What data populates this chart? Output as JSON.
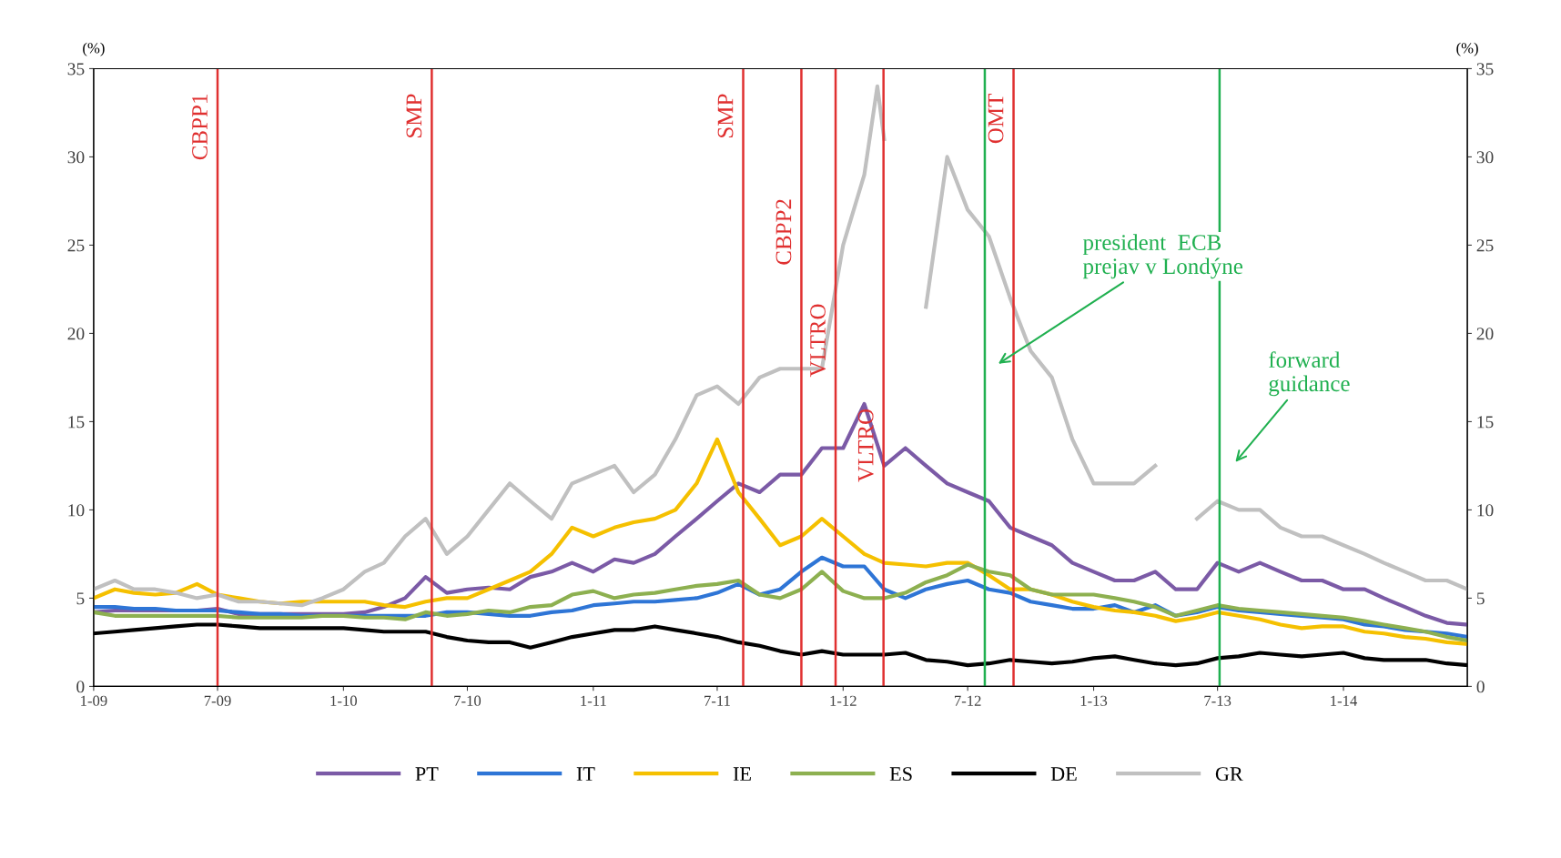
{
  "chart_data": {
    "type": "line",
    "ylabel": "(%)",
    "y2label": "(%)",
    "x": [
      "2009-01",
      "2009-02",
      "2009-03",
      "2009-04",
      "2009-05",
      "2009-06",
      "2009-07",
      "2009-08",
      "2009-09",
      "2009-10",
      "2009-11",
      "2009-12",
      "2010-01",
      "2010-02",
      "2010-03",
      "2010-04",
      "2010-05",
      "2010-06",
      "2010-07",
      "2010-08",
      "2010-09",
      "2010-10",
      "2010-11",
      "2010-12",
      "2011-01",
      "2011-02",
      "2011-03",
      "2011-04",
      "2011-05",
      "2011-06",
      "2011-07",
      "2011-08",
      "2011-09",
      "2011-10",
      "2011-11",
      "2011-12",
      "2012-01",
      "2012-02",
      "2012-03",
      "2012-04",
      "2012-05",
      "2012-06",
      "2012-07",
      "2012-08",
      "2012-09",
      "2012-10",
      "2012-11",
      "2012-12",
      "2013-01",
      "2013-02",
      "2013-03",
      "2013-04",
      "2013-05",
      "2013-06",
      "2013-07",
      "2013-08",
      "2013-09",
      "2013-10",
      "2013-11",
      "2013-12",
      "2014-01",
      "2014-02",
      "2014-03",
      "2014-04",
      "2014-05",
      "2014-06",
      "2014-07"
    ],
    "series": [
      {
        "name": "PT",
        "color": "#7b5aa6",
        "values": [
          4.2,
          4.3,
          4.3,
          4.3,
          4.3,
          4.3,
          4.4,
          4.1,
          4.1,
          4.1,
          4.1,
          4.1,
          4.1,
          4.2,
          4.5,
          5.0,
          6.2,
          5.3,
          5.5,
          5.6,
          5.5,
          6.2,
          6.5,
          7.0,
          6.5,
          7.2,
          7.0,
          7.5,
          8.5,
          9.5,
          10.5,
          11.5,
          11.0,
          12.0,
          12.0,
          13.5,
          13.5,
          16.0,
          12.5,
          13.5,
          12.5,
          11.5,
          11.0,
          10.5,
          9.0,
          8.5,
          8.0,
          7.0,
          6.5,
          6.0,
          6.0,
          6.5,
          5.5,
          5.5,
          7.0,
          6.5,
          7.0,
          6.5,
          6.0,
          6.0,
          5.5,
          5.5,
          5.0,
          4.5,
          4.0,
          3.6,
          3.5
        ]
      },
      {
        "name": "IT",
        "color": "#2e75d6",
        "values": [
          4.5,
          4.5,
          4.4,
          4.4,
          4.3,
          4.3,
          4.3,
          4.2,
          4.1,
          4.1,
          4.0,
          4.0,
          4.0,
          4.0,
          4.0,
          4.0,
          4.0,
          4.2,
          4.2,
          4.1,
          4.0,
          4.0,
          4.2,
          4.3,
          4.6,
          4.7,
          4.8,
          4.8,
          4.9,
          5.0,
          5.3,
          5.8,
          5.2,
          5.5,
          6.5,
          7.3,
          6.8,
          6.8,
          5.5,
          5.0,
          5.5,
          5.8,
          6.0,
          5.5,
          5.3,
          4.8,
          4.6,
          4.4,
          4.4,
          4.6,
          4.2,
          4.6,
          4.0,
          4.2,
          4.5,
          4.3,
          4.2,
          4.1,
          4.0,
          3.9,
          3.8,
          3.5,
          3.4,
          3.2,
          3.1,
          3.0,
          2.8
        ]
      },
      {
        "name": "IE",
        "color": "#f5c000",
        "values": [
          5.0,
          5.5,
          5.3,
          5.2,
          5.3,
          5.8,
          5.2,
          5.0,
          4.8,
          4.7,
          4.8,
          4.8,
          4.8,
          4.8,
          4.6,
          4.5,
          4.8,
          5.0,
          5.0,
          5.5,
          6.0,
          6.5,
          7.5,
          9.0,
          8.5,
          9.0,
          9.3,
          9.5,
          10.0,
          11.5,
          14.0,
          11.0,
          9.5,
          8.0,
          8.5,
          9.5,
          8.5,
          7.5,
          7.0,
          6.9,
          6.8,
          7.0,
          7.0,
          6.3,
          5.5,
          5.5,
          5.2,
          4.8,
          4.5,
          4.3,
          4.2,
          4.0,
          3.7,
          3.9,
          4.2,
          4.0,
          3.8,
          3.5,
          3.3,
          3.4,
          3.4,
          3.1,
          3.0,
          2.8,
          2.7,
          2.5,
          2.4
        ]
      },
      {
        "name": "ES",
        "color": "#8db050",
        "values": [
          4.2,
          4.0,
          4.0,
          4.0,
          4.0,
          4.0,
          4.0,
          3.9,
          3.9,
          3.9,
          3.9,
          4.0,
          4.0,
          3.9,
          3.9,
          3.8,
          4.2,
          4.0,
          4.1,
          4.3,
          4.2,
          4.5,
          4.6,
          5.2,
          5.4,
          5.0,
          5.2,
          5.3,
          5.5,
          5.7,
          5.8,
          6.0,
          5.2,
          5.0,
          5.5,
          6.5,
          5.4,
          5.0,
          5.0,
          5.3,
          5.9,
          6.3,
          6.9,
          6.5,
          6.3,
          5.5,
          5.2,
          5.2,
          5.2,
          5.0,
          4.8,
          4.5,
          4.0,
          4.3,
          4.6,
          4.4,
          4.3,
          4.2,
          4.1,
          4.0,
          3.9,
          3.7,
          3.5,
          3.3,
          3.1,
          2.8,
          2.6
        ]
      },
      {
        "name": "DE",
        "color": "#000000",
        "values": [
          3.0,
          3.1,
          3.2,
          3.3,
          3.4,
          3.5,
          3.5,
          3.4,
          3.3,
          3.3,
          3.3,
          3.3,
          3.3,
          3.2,
          3.1,
          3.1,
          3.1,
          2.8,
          2.6,
          2.5,
          2.5,
          2.2,
          2.5,
          2.8,
          3.0,
          3.2,
          3.2,
          3.4,
          3.2,
          3.0,
          2.8,
          2.5,
          2.3,
          2.0,
          1.8,
          2.0,
          1.8,
          1.8,
          1.8,
          1.9,
          1.5,
          1.4,
          1.2,
          1.3,
          1.5,
          1.4,
          1.3,
          1.4,
          1.6,
          1.7,
          1.5,
          1.3,
          1.2,
          1.3,
          1.6,
          1.7,
          1.9,
          1.8,
          1.7,
          1.8,
          1.9,
          1.6,
          1.5,
          1.5,
          1.5,
          1.3,
          1.2
        ]
      },
      {
        "name": "GR",
        "color": "#c0c0c0",
        "x": [
          "2009-01",
          "2009-02",
          "2009-03",
          "2009-04",
          "2009-05",
          "2009-06",
          "2009-07",
          "2009-08",
          "2009-09",
          "2009-10",
          "2009-11",
          "2009-12",
          "2010-01",
          "2010-02",
          "2010-03",
          "2010-04",
          "2010-05",
          "2010-06",
          "2010-07",
          "2010-08",
          "2010-09",
          "2010-10",
          "2010-11",
          "2010-12",
          "2011-01",
          "2011-02",
          "2011-03",
          "2011-04",
          "2011-05",
          "2011-06",
          "2011-07",
          "2011-08",
          "2011-09",
          "2011-10",
          "2011-11",
          "2011-12",
          "2012-01",
          "2012-02",
          "2012-02-20",
          "2012-03",
          "2012-04",
          "2012-05",
          "2012-06",
          "2012-07",
          "2012-08",
          "2012-09",
          "2012-10",
          "2012-11",
          "2012-12",
          "2013-01",
          "2013-02",
          "2013-03",
          "2013-04",
          "2013-05",
          "2013-06",
          "2013-07",
          "2013-08",
          "2013-09",
          "2013-10",
          "2013-11",
          "2013-12",
          "2014-01",
          "2014-02",
          "2014-03",
          "2014-04",
          "2014-05",
          "2014-06",
          "2014-07"
        ],
        "values": [
          5.5,
          6.0,
          5.5,
          5.5,
          5.3,
          5.0,
          5.2,
          4.8,
          4.8,
          4.7,
          4.6,
          5.0,
          5.5,
          6.5,
          7.0,
          8.5,
          9.5,
          7.5,
          8.5,
          10.0,
          11.5,
          10.5,
          9.5,
          11.5,
          12.0,
          12.5,
          11.0,
          12.0,
          14.0,
          16.5,
          17.0,
          16.0,
          17.5,
          18.0,
          18.0,
          18.0,
          25.0,
          29.0,
          34.0,
          31.0,
          null,
          21.5,
          30.0,
          27.0,
          25.5,
          22.0,
          19.0,
          17.5,
          14.0,
          11.5,
          11.5,
          11.5,
          12.5,
          null,
          9.5,
          10.5,
          10.0,
          10.0,
          9.0,
          8.5,
          8.5,
          8.0,
          7.5,
          7.0,
          6.5,
          6.0,
          6.0,
          5.5
        ]
      }
    ],
    "xlim": [
      "2009-01",
      "2014-07"
    ],
    "xticks": [
      {
        "value": "2009-01",
        "label": "1-09"
      },
      {
        "value": "2009-07",
        "label": "7-09"
      },
      {
        "value": "2010-01",
        "label": "1-10"
      },
      {
        "value": "2010-07",
        "label": "7-10"
      },
      {
        "value": "2011-01",
        "label": "1-11"
      },
      {
        "value": "2011-07",
        "label": "7-11"
      },
      {
        "value": "2012-01",
        "label": "1-12"
      },
      {
        "value": "2012-07",
        "label": "7-12"
      },
      {
        "value": "2013-01",
        "label": "1-13"
      },
      {
        "value": "2013-07",
        "label": "7-13"
      },
      {
        "value": "2014-01",
        "label": "1-14"
      }
    ],
    "ylim": [
      0,
      35
    ],
    "yticks": [
      0,
      5,
      10,
      15,
      20,
      25,
      30,
      35
    ],
    "y2lim": [
      0,
      35
    ],
    "y2ticks": [
      0,
      5,
      10,
      15,
      20,
      25,
      30,
      35
    ],
    "ref_lines": [
      {
        "axis": "x",
        "value": "2009-07",
        "label": "CBPP1",
        "color": "#e03030"
      },
      {
        "axis": "x",
        "value": "2010-05-10",
        "label": "SMP",
        "color": "#e03030"
      },
      {
        "axis": "x",
        "value": "2011-08-08",
        "label": "SMP",
        "color": "#e03030"
      },
      {
        "axis": "x",
        "value": "2011-11-01",
        "label": "CBPP2",
        "color": "#e03030"
      },
      {
        "axis": "x",
        "value": "2011-12-21",
        "label": "VLTRO",
        "color": "#e03030"
      },
      {
        "axis": "x",
        "value": "2012-02-29",
        "label": "VLTRO",
        "color": "#e03030"
      },
      {
        "axis": "x",
        "value": "2012-07-26",
        "color": "#20b050"
      },
      {
        "axis": "x",
        "value": "2012-09-06",
        "label": "OMT",
        "color": "#e03030"
      },
      {
        "axis": "x",
        "value": "2013-07-04",
        "color": "#20b050"
      }
    ],
    "annotations": [
      "president  ECB\nprejav v Londýne",
      "forward\nguidance"
    ],
    "legend": "bottom",
    "grid": false,
    "marker": "none",
    "line_style": "solid"
  }
}
